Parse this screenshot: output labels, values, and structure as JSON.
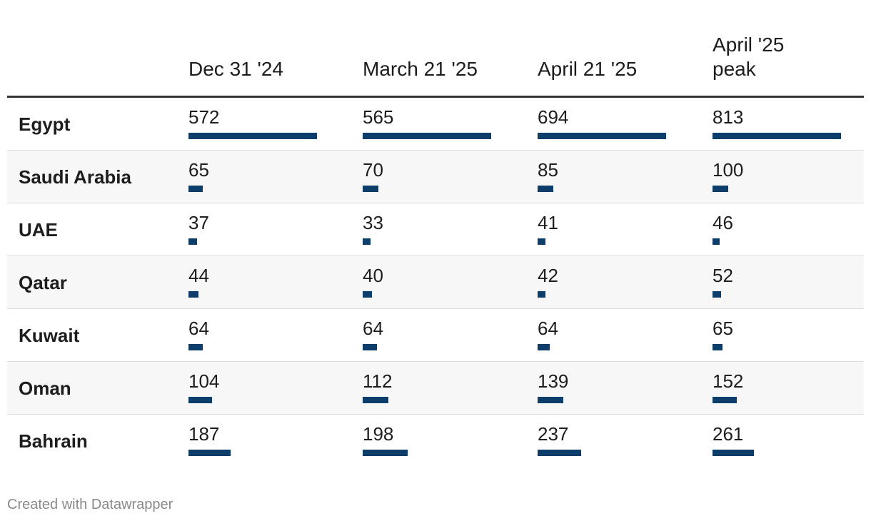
{
  "chart_data": {
    "type": "table",
    "columns": [
      "Dec 31 '24",
      "March 21 '25",
      "April 21 '25",
      "April '25\npeak"
    ],
    "rows": [
      {
        "country": "Egypt",
        "values": [
          572,
          565,
          694,
          813
        ]
      },
      {
        "country": "Saudi Arabia",
        "values": [
          65,
          70,
          85,
          100
        ]
      },
      {
        "country": "UAE",
        "values": [
          37,
          33,
          41,
          46
        ]
      },
      {
        "country": "Qatar",
        "values": [
          44,
          40,
          42,
          52
        ]
      },
      {
        "country": "Kuwait",
        "values": [
          64,
          64,
          64,
          65
        ]
      },
      {
        "country": "Oman",
        "values": [
          104,
          112,
          139,
          152
        ]
      },
      {
        "country": "Bahrain",
        "values": [
          187,
          198,
          237,
          261
        ]
      }
    ]
  },
  "colors": {
    "bar": "#0d3d6b",
    "header_rule": "#333333",
    "row_divider": "#dcdcdc",
    "shaded_row": "#f7f7f7",
    "footer_text": "#8a8a8a"
  },
  "footer": {
    "credit": "Created with Datawrapper"
  }
}
